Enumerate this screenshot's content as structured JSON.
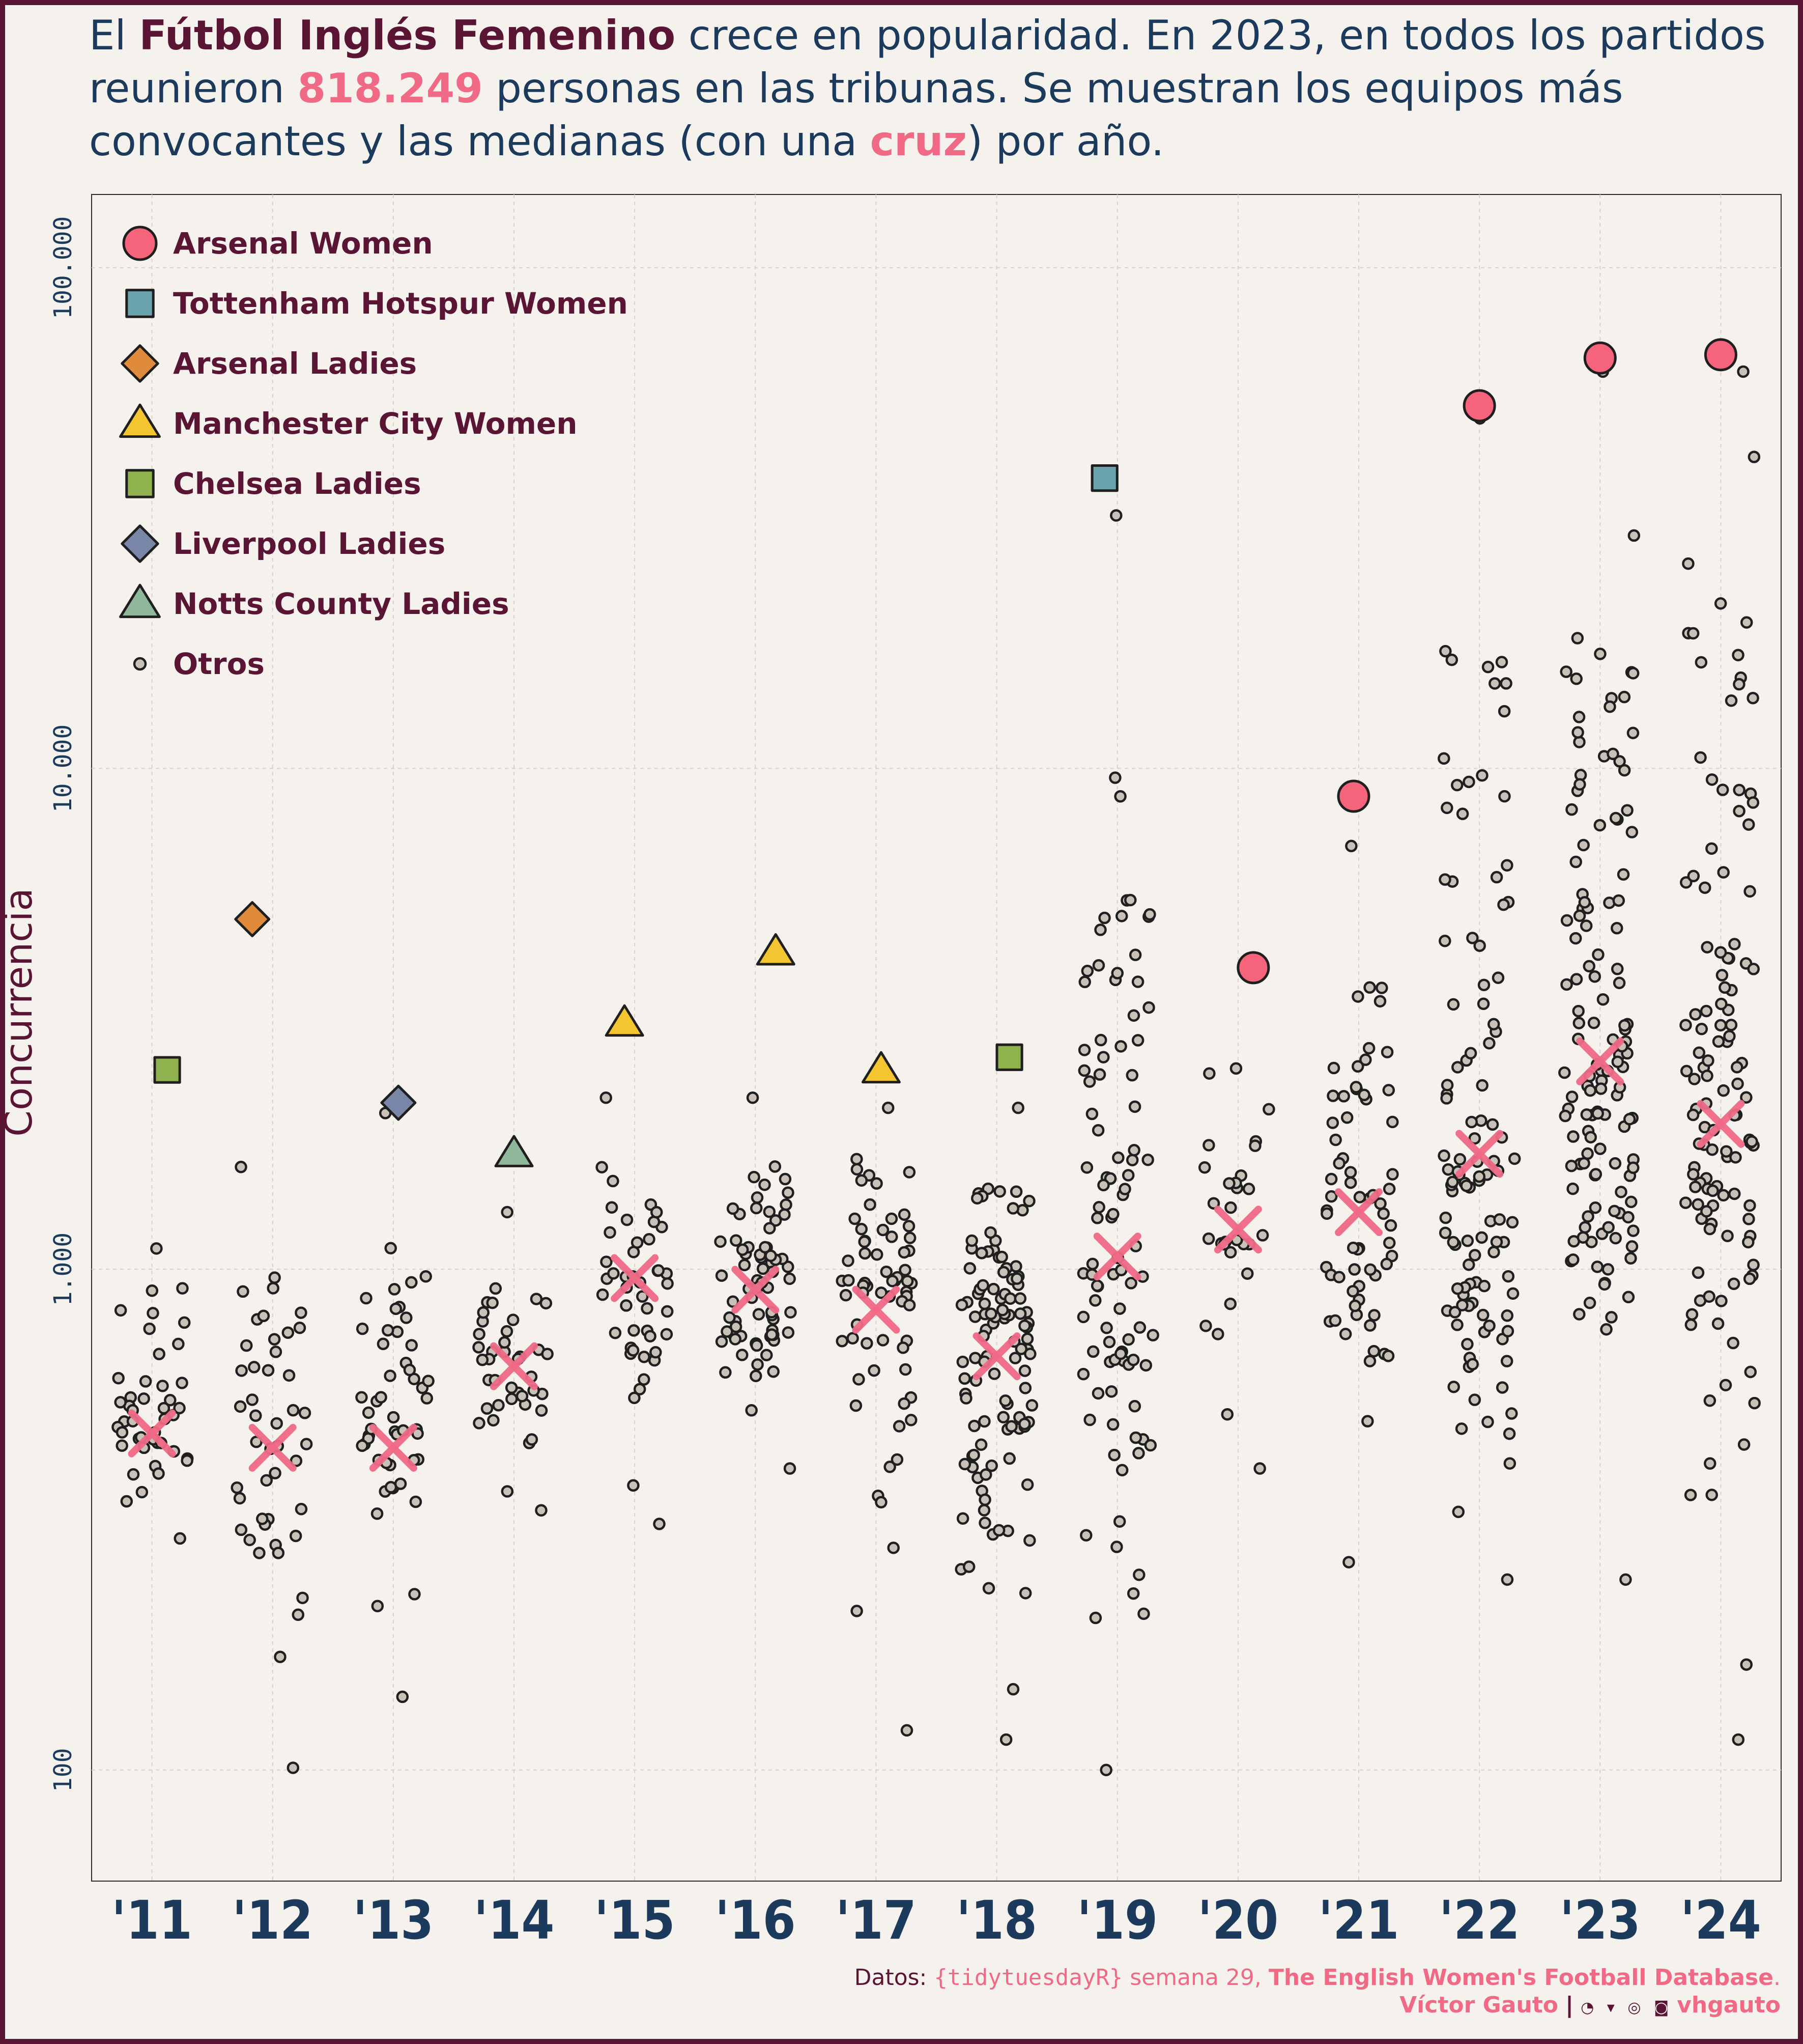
{
  "title": {
    "p1": "El ",
    "p2": "Fútbol Inglés Femenino",
    "p3": " crece en popularidad. En 2023, en todos los partidos reunieron ",
    "p4": "818.249",
    "p5": " personas en las tribunas. Se muestran los equipos más convocantes y las medianas (con una ",
    "p6": "cruz",
    "p7": ") por año."
  },
  "caption": {
    "datos_label": "Datos: ",
    "source_pkg": "{tidytuesdayR}",
    "source_week": " semana 29, ",
    "source_db": "The English Women's Football Database",
    "period": ".",
    "author": "Víctor Gauto",
    "separator": "|",
    "icons": "◔ ▾ ◎ ◙",
    "handle": "vhgauto"
  },
  "colors": {
    "background": "#f5f2ee",
    "frame": "#5a1434",
    "title": "#1b3a5c",
    "accent": "#f06a86",
    "axis_text": "#1b3a5c",
    "legend_text": "#5a1434"
  },
  "chart_data": {
    "type": "scatter",
    "title": "",
    "xlabel": "",
    "ylabel": "Concurrencia",
    "yscale": "log10",
    "ylim": [
      60,
      140000
    ],
    "grid": true,
    "legend_position": "top-left",
    "categories": [
      "'11",
      "'12",
      "'13",
      "'14",
      "'15",
      "'16",
      "'17",
      "'18",
      "'19",
      "'20",
      "'21",
      "'22",
      "'23",
      "'24"
    ],
    "y_ticks": [
      {
        "value": 100,
        "label": "100"
      },
      {
        "value": 1000,
        "label": "1.000"
      },
      {
        "value": 10000,
        "label": "10.000"
      },
      {
        "value": 100000,
        "label": "100.000"
      }
    ],
    "legend": [
      {
        "name": "Arsenal Women",
        "shape": "circle",
        "color": "#f6647c"
      },
      {
        "name": "Tottenham Hotspur Women",
        "shape": "square",
        "color": "#6ba3ad"
      },
      {
        "name": "Arsenal Ladies",
        "shape": "diamond",
        "color": "#e08a3c"
      },
      {
        "name": "Manchester City Women",
        "shape": "triangle",
        "color": "#f3c531"
      },
      {
        "name": "Chelsea Ladies",
        "shape": "square",
        "color": "#8fb24e"
      },
      {
        "name": "Liverpool Ladies",
        "shape": "diamond",
        "color": "#7a86a8"
      },
      {
        "name": "Notts County Ladies",
        "shape": "triangle",
        "color": "#8fb89a"
      },
      {
        "name": "Otros",
        "shape": "small-circle",
        "color": "#c8c1b8"
      }
    ],
    "top_teams": [
      {
        "year": "'11",
        "team": "Chelsea Ladies",
        "attendance": 2500
      },
      {
        "year": "'12",
        "team": "Arsenal Ladies",
        "attendance": 5000
      },
      {
        "year": "'13",
        "team": "Liverpool Ladies",
        "attendance": 2150
      },
      {
        "year": "'14",
        "team": "Notts County Ladies",
        "attendance": 1700
      },
      {
        "year": "'15",
        "team": "Manchester City Women",
        "attendance": 3100
      },
      {
        "year": "'16",
        "team": "Manchester City Women",
        "attendance": 4300
      },
      {
        "year": "'17",
        "team": "Manchester City Women",
        "attendance": 2500
      },
      {
        "year": "'18",
        "team": "Chelsea Ladies",
        "attendance": 2650
      },
      {
        "year": "'19",
        "team": "Tottenham Hotspur Women",
        "attendance": 38000
      },
      {
        "year": "'20",
        "team": "Arsenal Women",
        "attendance": 4000
      },
      {
        "year": "'21",
        "team": "Arsenal Women",
        "attendance": 8800
      },
      {
        "year": "'22",
        "team": "Arsenal Women",
        "attendance": 53000
      },
      {
        "year": "'23",
        "team": "Arsenal Women",
        "attendance": 66000
      },
      {
        "year": "'24",
        "team": "Arsenal Women",
        "attendance": 67000
      }
    ],
    "medians": [
      {
        "year": "'11",
        "value": 470
      },
      {
        "year": "'12",
        "value": 440
      },
      {
        "year": "'13",
        "value": 440
      },
      {
        "year": "'14",
        "value": 640
      },
      {
        "year": "'15",
        "value": 960
      },
      {
        "year": "'16",
        "value": 910
      },
      {
        "year": "'17",
        "value": 830
      },
      {
        "year": "'18",
        "value": 670
      },
      {
        "year": "'19",
        "value": 1060
      },
      {
        "year": "'20",
        "value": 1200
      },
      {
        "year": "'21",
        "value": 1300
      },
      {
        "year": "'22",
        "value": 1700
      },
      {
        "year": "'23",
        "value": 2600
      },
      {
        "year": "'24",
        "value": 1950
      }
    ],
    "others": [
      {
        "year": "'11",
        "n": 45,
        "min": 290,
        "max": 1100
      },
      {
        "year": "'12",
        "n": 45,
        "min": 101,
        "max": 1600
      },
      {
        "year": "'13",
        "n": 50,
        "min": 140,
        "max": 2050
      },
      {
        "year": "'14",
        "n": 40,
        "min": 330,
        "max": 1300
      },
      {
        "year": "'15",
        "n": 45,
        "min": 310,
        "max": 2200
      },
      {
        "year": "'16",
        "n": 70,
        "min": 400,
        "max": 2200
      },
      {
        "year": "'17",
        "n": 65,
        "min": 120,
        "max": 2100
      },
      {
        "year": "'18",
        "n": 110,
        "min": 115,
        "max": 2100
      },
      {
        "year": "'19",
        "n": 95,
        "min": 100,
        "max": 32000
      },
      {
        "year": "'20",
        "n": 30,
        "min": 400,
        "max": 4000
      },
      {
        "year": "'21",
        "n": 65,
        "min": 260,
        "max": 7000
      },
      {
        "year": "'22",
        "n": 110,
        "min": 240,
        "max": 50000
      },
      {
        "year": "'23",
        "n": 130,
        "min": 240,
        "max": 62000
      },
      {
        "year": "'24",
        "n": 120,
        "min": 115,
        "max": 62000
      }
    ]
  }
}
